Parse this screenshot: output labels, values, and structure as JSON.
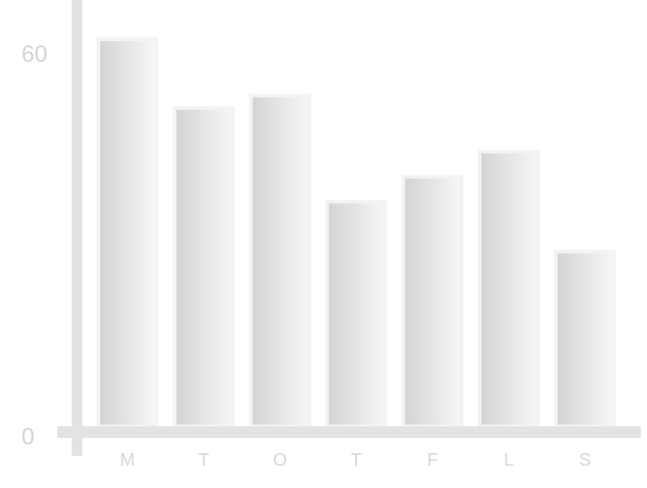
{
  "chart_data": {
    "type": "bar",
    "categories": [
      "M",
      "T",
      "O",
      "T",
      "F",
      "L",
      "S"
    ],
    "values": [
      62,
      51,
      53,
      36,
      40,
      44,
      28
    ],
    "ylim": [
      0,
      60
    ],
    "y_ticks": [
      "0",
      "60"
    ],
    "grid": false,
    "colors": {
      "bar_light": "#f7f7f7",
      "bar_dark": "#d3d3d3",
      "bar_outline": "#f3f3f3",
      "axis": "#e3e3e3",
      "text": "#d4d4d4"
    }
  }
}
